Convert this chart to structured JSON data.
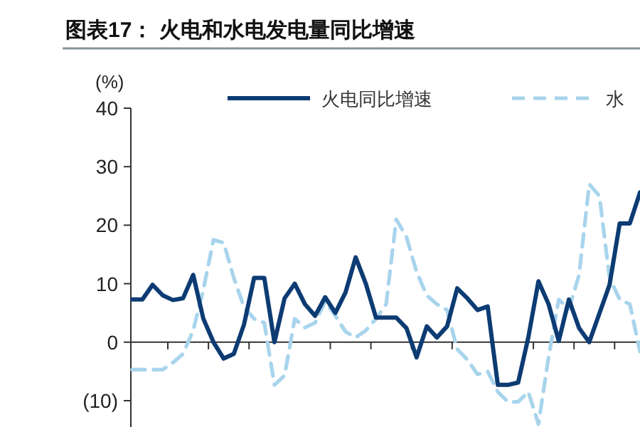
{
  "chart_data": {
    "type": "line",
    "title": "图表17： 火电和水电发电量同比增速",
    "ylabel": "(%)",
    "categories": [
      null,
      null,
      null,
      null,
      null,
      null,
      null,
      null,
      null,
      null,
      null,
      null,
      null,
      null,
      null,
      null,
      null,
      null,
      null,
      null,
      null,
      null,
      null,
      null,
      null,
      null,
      null,
      null,
      null,
      null,
      null,
      null,
      null,
      null,
      null,
      null,
      null,
      null,
      null,
      null,
      null,
      null,
      null,
      null,
      null,
      null,
      null,
      null,
      null,
      null,
      null
    ],
    "series": [
      {
        "name": "火电同比增速",
        "color": "#0d3b73",
        "line_style": "solid",
        "values": [
          7.3,
          7.3,
          9.8,
          8,
          7.2,
          7.5,
          11.5,
          4,
          0,
          -2.8,
          -2,
          3,
          11,
          11,
          0,
          7.5,
          10,
          6.5,
          4.5,
          7.7,
          5,
          8.5,
          14.5,
          10,
          4.2,
          4.2,
          4.2,
          2.4,
          -2.6,
          2.7,
          0.8,
          2.7,
          9.2,
          7.5,
          5.5,
          6.1,
          -7.3,
          -7.3,
          -6.9,
          0.8,
          10.4,
          6.5,
          0.2,
          7.3,
          2.4,
          0,
          4.9,
          9.8,
          20.3,
          20.3,
          25.6
        ]
      },
      {
        "name": "水",
        "color": "#a8d4ec",
        "line_style": "dashed",
        "values": [
          -4.7,
          -4.7,
          -4.7,
          -4.7,
          -3.5,
          -2,
          2,
          9,
          17.5,
          17,
          11,
          6,
          4,
          3.3,
          -7.3,
          -5.7,
          4,
          2.5,
          3.3,
          7,
          4.5,
          1.8,
          0.8,
          2,
          4,
          6.5,
          21,
          18,
          12,
          8,
          6.5,
          5.5,
          -1.2,
          -3,
          -5.5,
          -5,
          -8.5,
          -10.2,
          -10.2,
          -8.5,
          -14,
          -2.5,
          7.3,
          5.7,
          11.5,
          27,
          25,
          11,
          7.3,
          6.5,
          -1.6
        ]
      }
    ],
    "ylim": [
      -14.5,
      40
    ],
    "yticks": [
      40,
      30,
      20,
      10,
      0,
      {
        "value": -10,
        "label": "(10)"
      }
    ],
    "legend": "top"
  }
}
